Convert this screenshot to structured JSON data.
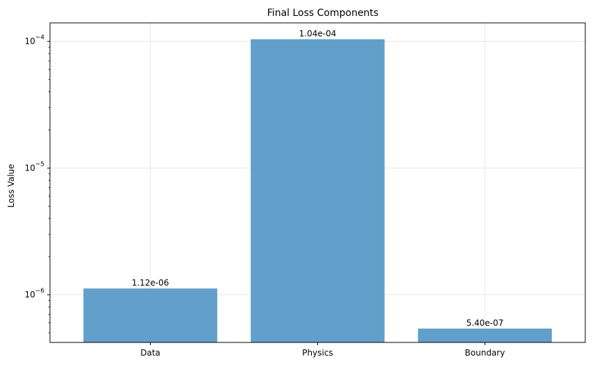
{
  "chart_data": {
    "type": "bar",
    "title": "Final Loss Components",
    "xlabel": "",
    "ylabel": "Loss Value",
    "yscale": "log",
    "ylim": [
      4.2e-07,
      0.00014
    ],
    "grid": true,
    "categories": [
      "Data",
      "Physics",
      "Boundary"
    ],
    "values": [
      1.12e-06,
      0.000104,
      5.4e-07
    ],
    "value_labels": [
      "1.12e-06",
      "1.04e-04",
      "5.40e-07"
    ],
    "ytick_values": [
      1e-06,
      1e-05,
      0.0001
    ],
    "bar_color": "#629fca",
    "grid_color": "#e6e6e6"
  }
}
